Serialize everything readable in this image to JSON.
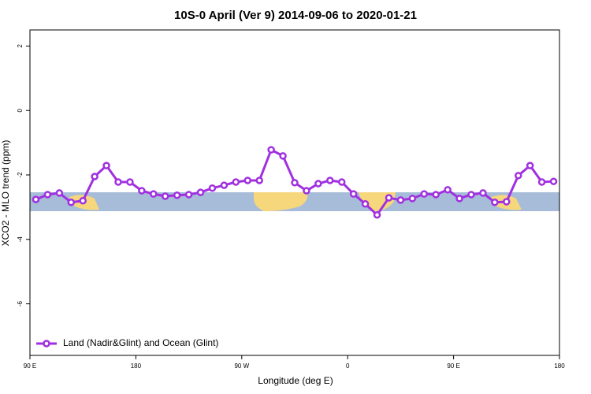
{
  "chart_data": {
    "type": "line",
    "title": "10S-0 April (Ver 9)   2014-09-06 to 2020-01-21",
    "xlabel": "Longitude (deg E)",
    "ylabel": "XCO2 - MLO trend (ppm)",
    "x": [
      95,
      105,
      115,
      125,
      135,
      145,
      155,
      165,
      175,
      185,
      195,
      205,
      215,
      225,
      235,
      245,
      255,
      265,
      275,
      285,
      295,
      305,
      315,
      325,
      335,
      345,
      355,
      365,
      375,
      385,
      395,
      405,
      415,
      425,
      435,
      445,
      455,
      465,
      475,
      485,
      495,
      505,
      515,
      525,
      535
    ],
    "series": [
      {
        "name": "Land (Nadir&Glint) and Ocean (Glint)",
        "color": "#a030e0",
        "values": [
          -2.76,
          -2.61,
          -2.56,
          -2.85,
          -2.8,
          -2.05,
          -1.71,
          -2.22,
          -2.22,
          -2.49,
          -2.59,
          -2.66,
          -2.63,
          -2.61,
          -2.54,
          -2.41,
          -2.32,
          -2.22,
          -2.17,
          -2.17,
          -1.22,
          -1.41,
          -2.24,
          -2.49,
          -2.27,
          -2.17,
          -2.22,
          -2.59,
          -2.9,
          -3.24,
          -2.71,
          -2.78,
          -2.73,
          -2.59,
          -2.61,
          -2.46,
          -2.73,
          -2.61,
          -2.56,
          -2.85,
          -2.83,
          -2.02,
          -1.71,
          -2.22,
          -2.2
        ]
      }
    ],
    "xlim": [
      90,
      540
    ],
    "xticks": [
      {
        "value": 90,
        "label": "90 E"
      },
      180,
      {
        "value": 270,
        "label": "90 W"
      },
      {
        "value": 360,
        "label": "0"
      },
      {
        "value": 450,
        "label": "90 E"
      },
      {
        "value": 540,
        "label": "180"
      }
    ],
    "ylim": [
      -7.6,
      2.5
    ],
    "yticks": [
      -6,
      -4,
      -2,
      0,
      2
    ],
    "legend": "bottom-left"
  }
}
